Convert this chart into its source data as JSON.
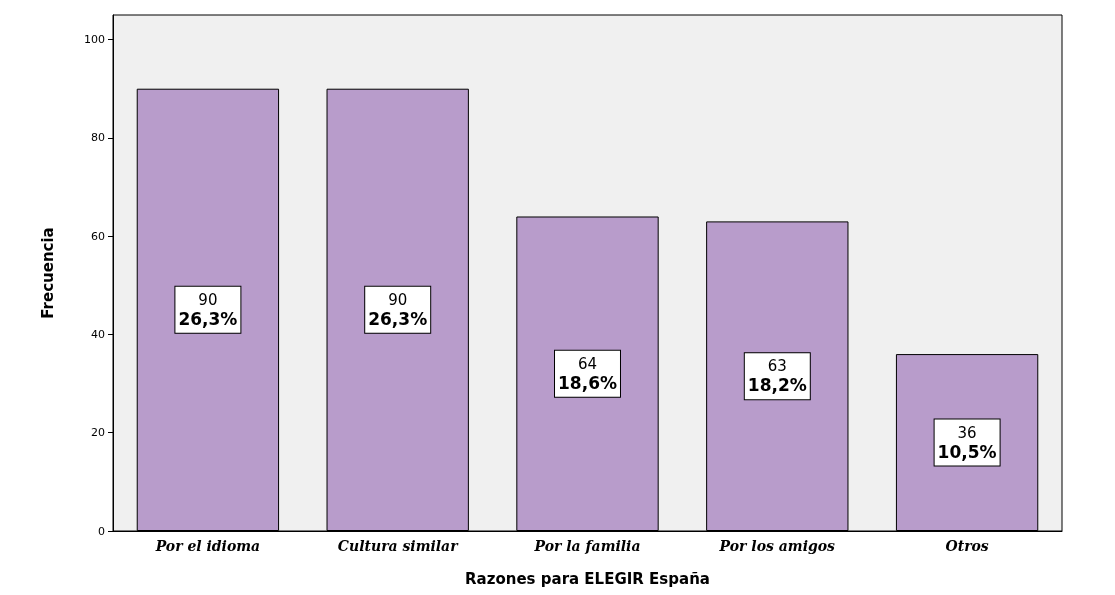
{
  "chart_data": {
    "type": "bar",
    "xlabel": "Razones para ELEGIR España",
    "ylabel": "Frecuencia",
    "categories": [
      "Por el idioma",
      "Cultura similar",
      "Por la familia",
      "Por los amigos",
      "Otros"
    ],
    "values": [
      90,
      90,
      64,
      63,
      36
    ],
    "value_labels": [
      "90\n26,3%",
      "90\n26,3%",
      "64\n18,6%",
      "63\n18,2%",
      "36\n10,5%"
    ],
    "color": "#b89ccb",
    "ylim": [
      0,
      105
    ],
    "yticks": [
      0,
      20,
      40,
      60,
      80,
      100
    ],
    "grid": false
  }
}
